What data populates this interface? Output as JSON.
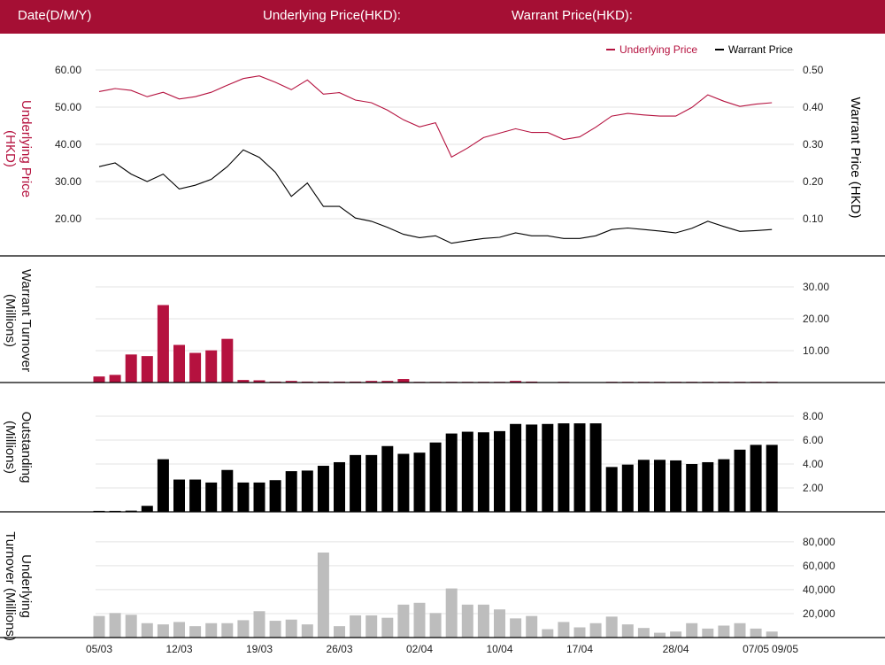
{
  "header": {
    "date_label": "Date(D/M/Y)",
    "underlying_label": "Underlying Price(HKD):",
    "warrant_label": "Warrant Price(HKD):"
  },
  "colors": {
    "brand": "#a50f34",
    "underlying": "#b5123f",
    "warrant": "#000000",
    "turnover": "#b5123f",
    "outstanding": "#000000",
    "underlying_turnover": "#bdbdbd"
  },
  "chart_data": [
    {
      "type": "line",
      "legend": [
        "Underlying Price",
        "Warrant Price"
      ],
      "legend_position": "top-right",
      "ylabel_left": "Underlying Price (HKD)",
      "ylabel_right": "Warrant  Price (HKD)",
      "left_ticks": [
        "60.00",
        "50.00",
        "40.00",
        "30.00",
        "20.00"
      ],
      "right_ticks": [
        "0.50",
        "0.40",
        "0.30",
        "0.20",
        "0.10"
      ],
      "ylim_left": [
        10,
        65
      ],
      "ylim_right": [
        0,
        0.55
      ],
      "series": [
        {
          "name": "Underlying Price",
          "axis": "left",
          "values": [
            54.2,
            55.0,
            54.5,
            52.8,
            54.0,
            52.2,
            52.8,
            54.0,
            55.9,
            57.7,
            58.4,
            56.7,
            54.7,
            57.3,
            53.5,
            53.9,
            51.9,
            51.2,
            49.2,
            46.6,
            44.7,
            45.8,
            36.6,
            39.0,
            41.8,
            43.0,
            44.2,
            43.2,
            43.2,
            41.3,
            42.0,
            44.6,
            47.6,
            48.3,
            47.9,
            47.6,
            47.6,
            49.9,
            53.3,
            51.6,
            50.2,
            50.8,
            51.2
          ]
        },
        {
          "name": "Warrant Price",
          "axis": "right",
          "values": [
            0.24,
            0.25,
            0.22,
            0.2,
            0.22,
            0.18,
            0.19,
            0.206,
            0.24,
            0.285,
            0.265,
            0.225,
            0.16,
            0.196,
            0.133,
            0.133,
            0.102,
            0.093,
            0.077,
            0.058,
            0.049,
            0.054,
            0.034,
            0.041,
            0.047,
            0.05,
            0.062,
            0.054,
            0.054,
            0.047,
            0.047,
            0.054,
            0.071,
            0.075,
            0.071,
            0.067,
            0.062,
            0.074,
            0.093,
            0.079,
            0.066,
            0.068,
            0.071
          ]
        }
      ]
    },
    {
      "type": "bar",
      "ylabel": "Warrant  Turnover (Millions)",
      "ticks": [
        "30.00",
        "20.00",
        "10.00"
      ],
      "ylim": [
        0,
        34
      ],
      "values": [
        1.9,
        2.4,
        8.8,
        8.3,
        24.3,
        11.8,
        9.3,
        10.1,
        13.7,
        0.8,
        0.7,
        0.3,
        0.5,
        0.3,
        0.3,
        0.3,
        0.3,
        0.5,
        0.5,
        1.1,
        0.2,
        0.2,
        0.2,
        0.2,
        0.2,
        0.2,
        0.5,
        0.3,
        0,
        0.2,
        0,
        0,
        0.2,
        0.2,
        0.2,
        0.2,
        0.2,
        0.2,
        0.2,
        0.2,
        0.2,
        0.2,
        0.2
      ]
    },
    {
      "type": "bar",
      "ylabel": "Outstanding (Millions)",
      "ticks": [
        "8.00",
        "6.00",
        "4.00",
        "2.00"
      ],
      "ylim": [
        0,
        9.2
      ],
      "values": [
        0.08,
        0.08,
        0.1,
        0.5,
        4.4,
        2.7,
        2.7,
        2.45,
        3.5,
        2.45,
        2.45,
        2.65,
        3.4,
        3.45,
        3.85,
        4.15,
        4.75,
        4.75,
        5.5,
        4.85,
        4.95,
        5.8,
        6.55,
        6.7,
        6.65,
        6.75,
        7.35,
        7.3,
        7.35,
        7.4,
        7.4,
        7.4,
        3.75,
        3.95,
        4.35,
        4.35,
        4.3,
        4.0,
        4.15,
        4.4,
        5.2,
        5.6,
        5.6
      ]
    },
    {
      "type": "bar",
      "ylabel": "Underlying Turnover (Millions)",
      "ticks": [
        "80,000",
        "60,000",
        "40,000",
        "20,000"
      ],
      "ylim": [
        0,
        91000
      ],
      "values": [
        18000,
        20500,
        19000,
        12000,
        11000,
        13000,
        9500,
        12000,
        12000,
        14500,
        22000,
        14000,
        15000,
        11000,
        71000,
        9500,
        18500,
        18500,
        16500,
        27500,
        29000,
        20500,
        41000,
        27500,
        27500,
        23500,
        16000,
        18000,
        7000,
        13000,
        8500,
        12000,
        17500,
        11000,
        8000,
        4000,
        5000,
        12000,
        7500,
        10000,
        12000,
        7500,
        5000
      ]
    }
  ],
  "x_axis": {
    "tick_labels": [
      "05/03",
      "12/03",
      "19/03",
      "26/03",
      "02/04",
      "10/04",
      "17/04",
      "28/04",
      "07/05",
      "09/05"
    ],
    "tick_index": [
      0,
      5,
      10,
      15,
      20,
      25,
      30,
      36,
      41,
      43
    ]
  }
}
